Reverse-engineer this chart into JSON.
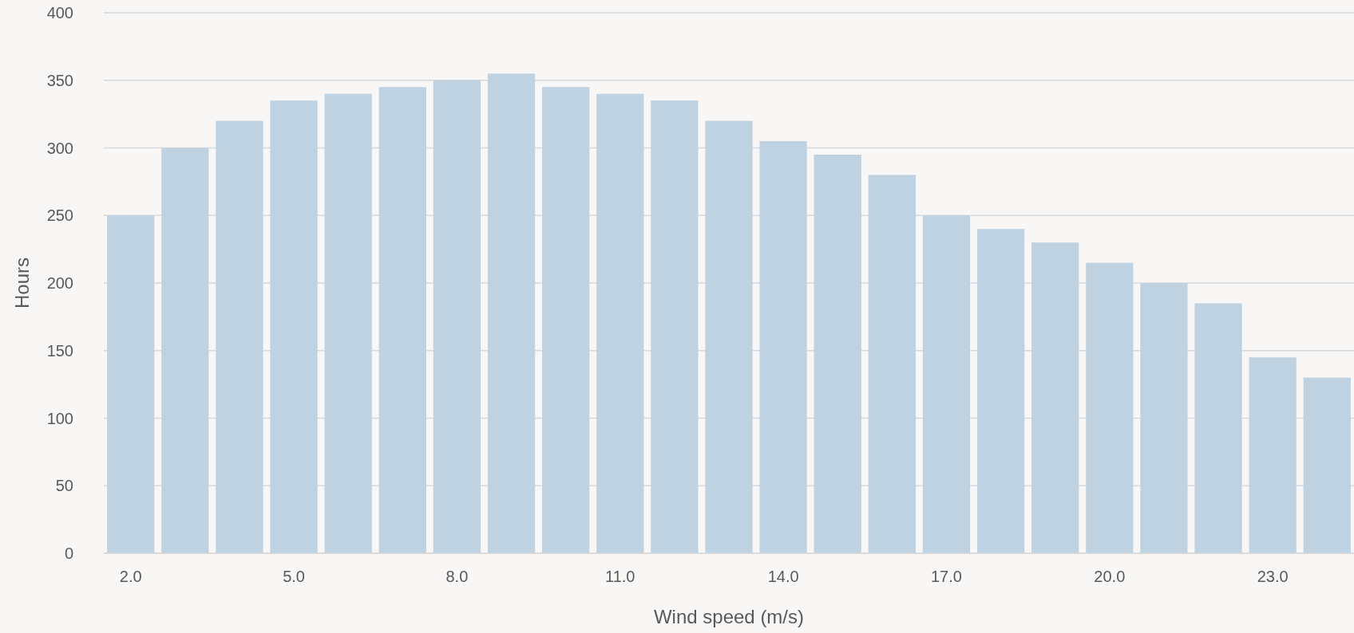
{
  "chart_data": {
    "type": "bar",
    "xlabel": "Wind speed (m/s)",
    "ylabel": "Hours",
    "categories": [
      "2.0",
      null,
      null,
      "5.0",
      null,
      null,
      "8.0",
      null,
      null,
      "11.0",
      null,
      null,
      "14.0",
      null,
      null,
      "17.0",
      null,
      null,
      "20.0",
      null,
      null,
      "23.0",
      null
    ],
    "values": [
      250,
      300,
      320,
      335,
      340,
      345,
      350,
      355,
      345,
      340,
      335,
      320,
      305,
      295,
      280,
      250,
      240,
      230,
      215,
      200,
      185,
      145,
      130
    ],
    "color": "#bfd2e1",
    "ylim": [
      0,
      400
    ],
    "yticks": [
      0,
      50,
      100,
      150,
      200,
      250,
      300,
      350,
      400
    ],
    "grid": "y"
  }
}
